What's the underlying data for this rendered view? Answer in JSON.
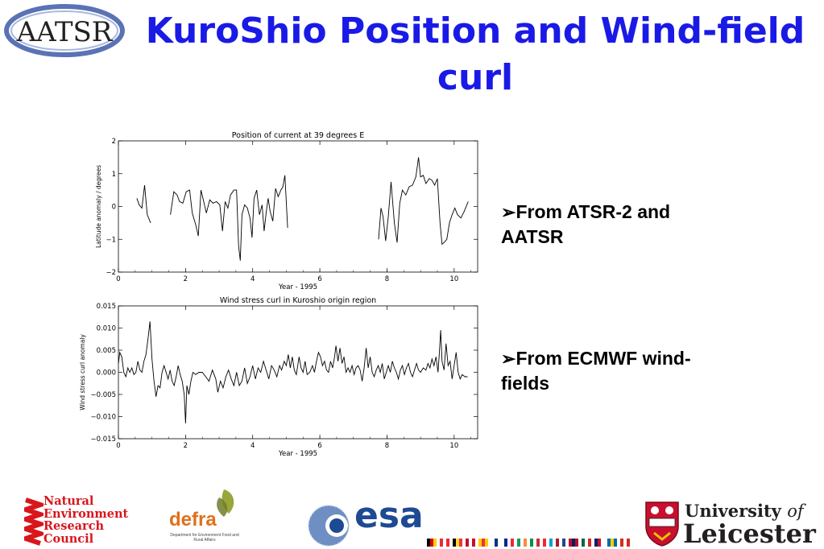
{
  "slide": {
    "title": "KuroShio Position and Wind-field curl",
    "bullets": [
      {
        "text": "From ATSR-2 and AATSR"
      },
      {
        "text": "From ECMWF wind-fields"
      }
    ]
  },
  "logos": {
    "aatsr": "AATSR",
    "nerc": [
      "Natural",
      "Environment",
      "Research",
      "Council"
    ],
    "defra": {
      "word": "defra",
      "sub": "Department for Environment Food and Rural Affairs"
    },
    "esa": "esa",
    "leicester": {
      "line1": "University",
      "of": "of",
      "line2": "Leicester"
    }
  },
  "colors": {
    "title": "#1a1ae6",
    "nerc": "#d8161c",
    "defra": "#e0701a",
    "esa": "#1d4a93"
  },
  "chart_data": [
    {
      "type": "line",
      "title": "Position of current at 39 degrees E",
      "xlabel": "Year - 1995",
      "ylabel": "Latitude anomaly / degrees",
      "xlim": [
        0,
        10.7
      ],
      "ylim": [
        -2,
        2
      ],
      "xticks": [
        0,
        2,
        4,
        6,
        8,
        10
      ],
      "yticks": [
        -2,
        -1,
        0,
        1,
        2
      ],
      "ytick_labels": [
        "−2",
        "−1",
        "0",
        "1",
        "2"
      ],
      "segments": [
        [
          [
            0.55,
            0.25
          ],
          [
            0.62,
            0.05
          ],
          [
            0.7,
            -0.05
          ],
          [
            0.78,
            0.65
          ],
          [
            0.86,
            -0.25
          ],
          [
            0.96,
            -0.5
          ]
        ],
        [
          [
            1.55,
            -0.25
          ],
          [
            1.65,
            0.45
          ],
          [
            1.75,
            0.35
          ],
          [
            1.82,
            0.15
          ],
          [
            1.92,
            0.1
          ],
          [
            2.02,
            0.45
          ],
          [
            2.12,
            0.5
          ],
          [
            2.2,
            -0.2
          ],
          [
            2.3,
            -0.55
          ],
          [
            2.38,
            -0.9
          ],
          [
            2.46,
            0.5
          ],
          [
            2.54,
            0.15
          ],
          [
            2.62,
            -0.2
          ],
          [
            2.72,
            0.2
          ],
          [
            2.82,
            0.1
          ],
          [
            2.92,
            0.15
          ],
          [
            3.02,
            0.05
          ],
          [
            3.1,
            -0.75
          ],
          [
            3.18,
            0.15
          ],
          [
            3.26,
            -0.05
          ],
          [
            3.34,
            0.35
          ],
          [
            3.44,
            0.5
          ],
          [
            3.52,
            0.5
          ],
          [
            3.58,
            -1.2
          ],
          [
            3.63,
            -1.65
          ],
          [
            3.68,
            -0.25
          ],
          [
            3.76,
            0.05
          ],
          [
            3.84,
            -0.05
          ],
          [
            3.92,
            -0.35
          ],
          [
            3.98,
            -0.95
          ],
          [
            4.04,
            0.25
          ],
          [
            4.12,
            0.5
          ],
          [
            4.2,
            -0.25
          ],
          [
            4.28,
            0.05
          ],
          [
            4.34,
            -0.75
          ],
          [
            4.4,
            -0.2
          ],
          [
            4.46,
            0.25
          ],
          [
            4.52,
            -0.15
          ],
          [
            4.6,
            -0.45
          ],
          [
            4.68,
            0.55
          ],
          [
            4.76,
            0.3
          ],
          [
            4.84,
            0.5
          ],
          [
            4.9,
            0.6
          ],
          [
            4.96,
            0.95
          ],
          [
            5.04,
            -0.65
          ]
        ],
        [
          [
            7.75,
            -1.0
          ],
          [
            7.82,
            -0.05
          ],
          [
            7.88,
            -0.3
          ],
          [
            7.96,
            -1.05
          ],
          [
            8.04,
            -0.3
          ],
          [
            8.12,
            0.75
          ],
          [
            8.22,
            -0.5
          ],
          [
            8.3,
            -1.1
          ],
          [
            8.38,
            0.1
          ],
          [
            8.46,
            0.5
          ],
          [
            8.56,
            0.35
          ],
          [
            8.66,
            0.6
          ],
          [
            8.76,
            0.65
          ],
          [
            8.86,
            0.9
          ],
          [
            8.94,
            1.5
          ],
          [
            9.0,
            0.9
          ],
          [
            9.08,
            0.95
          ],
          [
            9.16,
            0.7
          ],
          [
            9.26,
            0.85
          ],
          [
            9.34,
            0.8
          ],
          [
            9.42,
            0.65
          ],
          [
            9.5,
            0.85
          ],
          [
            9.58,
            -0.5
          ],
          [
            9.64,
            -1.15
          ],
          [
            9.7,
            -1.1
          ],
          [
            9.78,
            -1.0
          ],
          [
            9.86,
            -0.5
          ],
          [
            9.94,
            -0.25
          ],
          [
            10.02,
            -0.05
          ],
          [
            10.1,
            -0.25
          ],
          [
            10.2,
            -0.35
          ],
          [
            10.3,
            -0.15
          ],
          [
            10.42,
            0.15
          ]
        ]
      ]
    },
    {
      "type": "line",
      "title": "Wind stress curl in Kuroshio origin region",
      "xlabel": "Year - 1995",
      "ylabel": "Wind stress curl anomaly",
      "xlim": [
        0,
        10.7
      ],
      "ylim": [
        -0.015,
        0.015
      ],
      "xticks": [
        0,
        2,
        4,
        6,
        8,
        10
      ],
      "yticks": [
        -0.015,
        -0.01,
        -0.005,
        0.0,
        0.005,
        0.01,
        0.015
      ],
      "ytick_labels": [
        "−0.015",
        "−0.010",
        "−0.005",
        "0.000",
        "0.005",
        "0.010",
        "0.015"
      ],
      "segments": [
        [
          [
            0.0,
            0.002
          ],
          [
            0.04,
            0.0045
          ],
          [
            0.1,
            0.0035
          ],
          [
            0.16,
            0.0
          ],
          [
            0.22,
            -0.001
          ],
          [
            0.28,
            0.001
          ],
          [
            0.34,
            0.0
          ],
          [
            0.4,
            0.001
          ],
          [
            0.46,
            -0.0005
          ],
          [
            0.52,
            0.0
          ],
          [
            0.58,
            0.0025
          ],
          [
            0.64,
            0.0005
          ],
          [
            0.7,
            0.0
          ],
          [
            0.76,
            0.0025
          ],
          [
            0.82,
            0.004
          ],
          [
            0.88,
            0.0075
          ],
          [
            0.94,
            0.0115
          ],
          [
            1.0,
            0.003
          ],
          [
            1.06,
            -0.002
          ],
          [
            1.12,
            -0.0055
          ],
          [
            1.18,
            -0.003
          ],
          [
            1.24,
            -0.0035
          ],
          [
            1.3,
            0.0
          ],
          [
            1.36,
            0.0015
          ],
          [
            1.42,
            0.0
          ],
          [
            1.48,
            -0.0015
          ],
          [
            1.54,
            0.0005
          ],
          [
            1.6,
            -0.002
          ],
          [
            1.66,
            -0.003
          ],
          [
            1.72,
            -0.001
          ],
          [
            1.78,
            0.0015
          ],
          [
            1.84,
            -0.0005
          ],
          [
            1.9,
            -0.002
          ],
          [
            1.96,
            -0.005
          ],
          [
            2.0,
            -0.0115
          ],
          [
            2.04,
            -0.003
          ],
          [
            2.1,
            -0.005
          ],
          [
            2.16,
            -0.002
          ],
          [
            2.22,
            0.0
          ],
          [
            2.3,
            -0.0005
          ],
          [
            2.4,
            0.0
          ],
          [
            2.5,
            0.0
          ],
          [
            2.6,
            -0.001
          ],
          [
            2.7,
            -0.002
          ],
          [
            2.8,
            0.0005
          ],
          [
            2.9,
            -0.0015
          ],
          [
            2.96,
            -0.0045
          ],
          [
            3.04,
            -0.002
          ],
          [
            3.12,
            -0.0035
          ],
          [
            3.2,
            -0.001
          ],
          [
            3.28,
            0.0005
          ],
          [
            3.36,
            -0.0015
          ],
          [
            3.44,
            -0.003
          ],
          [
            3.52,
            0.0
          ],
          [
            3.6,
            -0.003
          ],
          [
            3.68,
            -0.002
          ],
          [
            3.76,
            0.001
          ],
          [
            3.84,
            -0.0025
          ],
          [
            3.92,
            -0.001
          ],
          [
            4.0,
            0.0015
          ],
          [
            4.08,
            -0.0015
          ],
          [
            4.16,
            0.001
          ],
          [
            4.24,
            0.0
          ],
          [
            4.32,
            0.0025
          ],
          [
            4.4,
            0.0005
          ],
          [
            4.48,
            -0.0015
          ],
          [
            4.56,
            0.0015
          ],
          [
            4.64,
            0.0005
          ],
          [
            4.72,
            -0.001
          ],
          [
            4.8,
            0.0015
          ],
          [
            4.86,
            0.0005
          ],
          [
            4.94,
            0.0025
          ],
          [
            5.0,
            0.0015
          ],
          [
            5.06,
            0.004
          ],
          [
            5.12,
            0.001
          ],
          [
            5.18,
            0.0035
          ],
          [
            5.24,
            0.0005
          ],
          [
            5.3,
            -0.0005
          ],
          [
            5.38,
            0.0035
          ],
          [
            5.44,
            0.001
          ],
          [
            5.5,
            0.0
          ],
          [
            5.56,
            0.0025
          ],
          [
            5.62,
            -0.0005
          ],
          [
            5.7,
            0.0
          ],
          [
            5.78,
            0.0015
          ],
          [
            5.84,
            0.0
          ],
          [
            5.9,
            0.0025
          ],
          [
            5.96,
            0.0045
          ],
          [
            6.02,
            0.0035
          ],
          [
            6.08,
            0.0015
          ],
          [
            6.14,
            0.0025
          ],
          [
            6.2,
            0.0005
          ],
          [
            6.26,
            0.0
          ],
          [
            6.32,
            0.0025
          ],
          [
            6.38,
            0.001
          ],
          [
            6.44,
            0.0035
          ],
          [
            6.48,
            0.006
          ],
          [
            6.54,
            0.0025
          ],
          [
            6.6,
            0.0055
          ],
          [
            6.66,
            0.002
          ],
          [
            6.72,
            0.0035
          ],
          [
            6.78,
            0.0
          ],
          [
            6.84,
            0.001
          ],
          [
            6.9,
            0.0
          ],
          [
            6.96,
            0.0015
          ],
          [
            7.02,
            -0.0005
          ],
          [
            7.08,
            0.001
          ],
          [
            7.14,
            0.0015
          ],
          [
            7.2,
            0.0005
          ],
          [
            7.26,
            -0.002
          ],
          [
            7.32,
            0.001
          ],
          [
            7.38,
            0.0055
          ],
          [
            7.44,
            0.001
          ],
          [
            7.5,
            0.0035
          ],
          [
            7.56,
            0.0
          ],
          [
            7.62,
            -0.001
          ],
          [
            7.68,
            0.0005
          ],
          [
            7.74,
            0.0015
          ],
          [
            7.8,
            0.0
          ],
          [
            7.86,
            0.002
          ],
          [
            7.92,
            -0.0015
          ],
          [
            7.98,
            0.0
          ],
          [
            8.04,
            0.0015
          ],
          [
            8.1,
            0.0
          ],
          [
            8.16,
            0.0025
          ],
          [
            8.22,
            0.001
          ],
          [
            8.28,
            0.0
          ],
          [
            8.34,
            -0.0015
          ],
          [
            8.4,
            0.0005
          ],
          [
            8.46,
            0.0015
          ],
          [
            8.52,
            -0.0005
          ],
          [
            8.58,
            0.001
          ],
          [
            8.64,
            0.002
          ],
          [
            8.7,
            0.0
          ],
          [
            8.76,
            -0.001
          ],
          [
            8.82,
            0.0005
          ],
          [
            8.88,
            0.002
          ],
          [
            8.94,
            0.0005
          ],
          [
            9.0,
            0.0
          ],
          [
            9.08,
            0.001
          ],
          [
            9.16,
            0.0005
          ],
          [
            9.22,
            0.002
          ],
          [
            9.28,
            0.001
          ],
          [
            9.34,
            0.003
          ],
          [
            9.4,
            0.0015
          ],
          [
            9.46,
            0.0035
          ],
          [
            9.52,
            0.0
          ],
          [
            9.56,
            0.0045
          ],
          [
            9.6,
            0.0095
          ],
          [
            9.64,
            0.0025
          ],
          [
            9.7,
            0.0005
          ],
          [
            9.76,
            0.0065
          ],
          [
            9.82,
            0.0015
          ],
          [
            9.88,
            0.0025
          ],
          [
            9.94,
            -0.0015
          ],
          [
            10.0,
            0.0015
          ],
          [
            10.06,
            0.0045
          ],
          [
            10.12,
            0.0
          ],
          [
            10.18,
            -0.0015
          ],
          [
            10.24,
            -0.0005
          ],
          [
            10.32,
            -0.001
          ],
          [
            10.4,
            -0.001
          ]
        ]
      ]
    }
  ]
}
